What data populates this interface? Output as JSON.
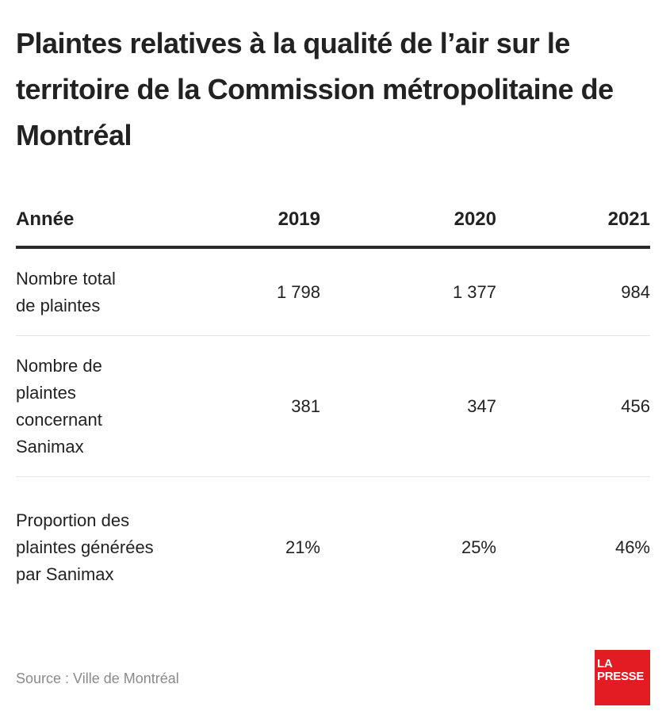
{
  "title": "Plaintes relatives à la qualité de l’air sur le territoire de la Commission métropolitaine de Montréal",
  "table": {
    "headers": [
      "Année",
      "2019",
      "2020",
      "2021"
    ],
    "rows": [
      {
        "label": "Nombre total de plaintes",
        "values": [
          "1 798",
          "1 377",
          "984"
        ]
      },
      {
        "label": "Nombre de plaintes concernant Sanimax",
        "values": [
          "381",
          "347",
          "456"
        ]
      },
      {
        "label": "Proportion des plaintes générées par Sanimax",
        "values": [
          "21%",
          "25%",
          "46%"
        ]
      }
    ]
  },
  "source": "Source : Ville de Montréal",
  "logo": {
    "line1": "LA",
    "line2": "PRESSE",
    "color": "#e31b23"
  }
}
